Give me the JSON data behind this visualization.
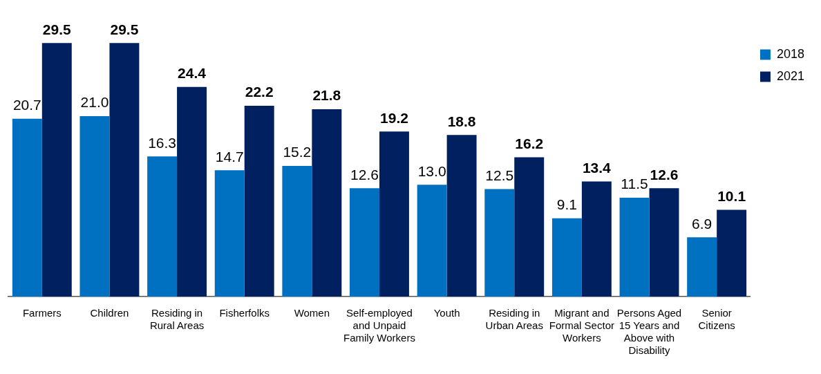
{
  "chart_data": {
    "type": "bar",
    "categories": [
      "Farmers",
      "Children",
      "Residing in Rural Areas",
      "Fisherfolks",
      "Women",
      "Self-employed and Unpaid Family Workers",
      "Youth",
      "Residing in Urban Areas",
      "Migrant and Formal Sector Workers",
      "Persons Aged 15 Years and Above with Disability",
      "Senior Citizens"
    ],
    "series": [
      {
        "name": "2018",
        "color": "#0070c0",
        "values": [
          20.7,
          21.0,
          16.3,
          14.7,
          15.2,
          12.6,
          13.0,
          12.5,
          9.1,
          11.5,
          6.9
        ],
        "value_labels": [
          "20.7",
          "21.0",
          "16.3",
          "14.7",
          "15.2",
          "12.6",
          "13.0",
          "12.5",
          "9.1",
          "11.5",
          "6.9"
        ]
      },
      {
        "name": "2021",
        "color": "#002060",
        "values": [
          29.5,
          29.5,
          24.4,
          22.2,
          21.8,
          19.2,
          18.8,
          16.2,
          13.4,
          12.6,
          10.1
        ],
        "value_labels": [
          "29.5",
          "29.5",
          "24.4",
          "22.2",
          "21.8",
          "19.2",
          "18.8",
          "16.2",
          "13.4",
          "12.6",
          "10.1"
        ]
      }
    ],
    "grid": false,
    "legend": "top right"
  }
}
